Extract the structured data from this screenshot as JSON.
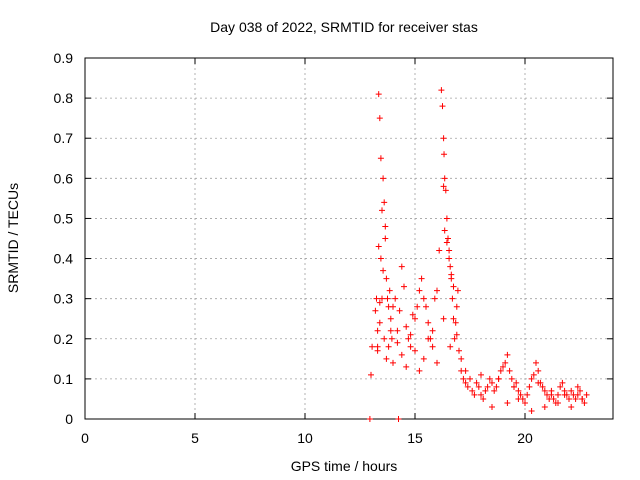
{
  "chart_data": {
    "type": "scatter",
    "title": "Day 038 of 2022, SRMTID for receiver stas",
    "xlabel": "GPS time / hours",
    "ylabel": "SRMTID / TECUs",
    "xlim": [
      0,
      24
    ],
    "ylim": [
      0,
      0.9
    ],
    "xticks": [
      0,
      5,
      10,
      15,
      20
    ],
    "xtick_labels": [
      "0",
      "5",
      "10",
      "15",
      "20"
    ],
    "yticks": [
      0,
      0.1,
      0.2,
      0.3,
      0.4,
      0.5,
      0.6,
      0.7,
      0.8,
      0.9
    ],
    "ytick_labels": [
      "0",
      "0.1",
      "0.2",
      "0.3",
      "0.4",
      "0.5",
      "0.6",
      "0.7",
      "0.8",
      "0.9"
    ],
    "grid": true,
    "marker": "+",
    "color": "#ff0000",
    "series": [
      {
        "name": "stas",
        "x": [
          13.0,
          13.05,
          13.2,
          13.25,
          13.3,
          13.35,
          13.4,
          13.45,
          13.5,
          13.55,
          13.6,
          13.65,
          13.7,
          13.75,
          13.8,
          13.85,
          13.9,
          13.95,
          14.0,
          14.1,
          14.2,
          14.3,
          14.4,
          14.5,
          14.6,
          14.7,
          14.8,
          14.9,
          15.0,
          15.1,
          15.2,
          15.3,
          15.4,
          15.5,
          15.6,
          15.7,
          15.8,
          15.9,
          16.0,
          16.1,
          16.2,
          16.25,
          16.3,
          16.35,
          16.4,
          16.45,
          16.5,
          16.55,
          16.6,
          16.65,
          16.7,
          16.75,
          16.8,
          16.85,
          16.9,
          16.95,
          17.0,
          17.1,
          17.2,
          17.3,
          17.4,
          17.5,
          17.6,
          17.7,
          17.8,
          17.9,
          18.0,
          18.1,
          18.2,
          18.3,
          18.4,
          18.5,
          18.6,
          18.7,
          18.8,
          18.9,
          19.0,
          19.1,
          19.2,
          19.3,
          19.4,
          19.5,
          19.6,
          19.7,
          19.8,
          19.9,
          20.0,
          20.1,
          20.2,
          20.3,
          20.4,
          20.5,
          20.6,
          20.7,
          20.8,
          20.9,
          21.0,
          21.1,
          21.2,
          21.3,
          21.4,
          21.5,
          21.6,
          21.7,
          21.8,
          21.9,
          22.0,
          22.1,
          22.2,
          22.3,
          22.4,
          22.5,
          22.6,
          22.7,
          22.8,
          13.3,
          13.4,
          13.5,
          13.6,
          13.7,
          13.8,
          13.9,
          14.0,
          14.2,
          14.4,
          14.6,
          14.8,
          15.0,
          15.2,
          15.4,
          15.6,
          15.8,
          16.0,
          16.3,
          16.6,
          16.9,
          17.1,
          17.3,
          13.35,
          13.45,
          13.55,
          13.65,
          16.35,
          16.45,
          16.55,
          16.65,
          16.75,
          12.95,
          14.25,
          13.3,
          13.4,
          16.3,
          16.32,
          18.5,
          19.2,
          19.7,
          20.3,
          20.9,
          21.5,
          22.1,
          22.6,
          18.0,
          18.8,
          19.5,
          20.6,
          21.2,
          21.8,
          22.4
        ],
        "y": [
          0.11,
          0.18,
          0.27,
          0.3,
          0.22,
          0.81,
          0.75,
          0.65,
          0.52,
          0.6,
          0.54,
          0.48,
          0.35,
          0.3,
          0.28,
          0.32,
          0.25,
          0.2,
          0.28,
          0.3,
          0.22,
          0.27,
          0.38,
          0.33,
          0.23,
          0.2,
          0.18,
          0.26,
          0.25,
          0.28,
          0.32,
          0.35,
          0.3,
          0.28,
          0.24,
          0.2,
          0.22,
          0.3,
          0.32,
          0.42,
          0.82,
          0.78,
          0.7,
          0.6,
          0.57,
          0.5,
          0.45,
          0.42,
          0.38,
          0.35,
          0.3,
          0.25,
          0.2,
          0.24,
          0.28,
          0.32,
          0.17,
          0.12,
          0.1,
          0.09,
          0.08,
          0.1,
          0.07,
          0.06,
          0.09,
          0.08,
          0.06,
          0.05,
          0.07,
          0.08,
          0.1,
          0.09,
          0.07,
          0.08,
          0.1,
          0.12,
          0.13,
          0.14,
          0.16,
          0.12,
          0.1,
          0.08,
          0.09,
          0.07,
          0.06,
          0.05,
          0.04,
          0.06,
          0.08,
          0.1,
          0.11,
          0.14,
          0.12,
          0.09,
          0.08,
          0.07,
          0.06,
          0.05,
          0.06,
          0.05,
          0.04,
          0.06,
          0.08,
          0.09,
          0.07,
          0.06,
          0.05,
          0.07,
          0.06,
          0.05,
          0.06,
          0.07,
          0.05,
          0.04,
          0.06,
          0.18,
          0.24,
          0.3,
          0.2,
          0.15,
          0.18,
          0.22,
          0.14,
          0.19,
          0.16,
          0.13,
          0.21,
          0.17,
          0.12,
          0.15,
          0.2,
          0.18,
          0.14,
          0.25,
          0.18,
          0.21,
          0.15,
          0.12,
          0.43,
          0.4,
          0.37,
          0.45,
          0.47,
          0.44,
          0.4,
          0.36,
          0.33,
          0.0,
          0.0,
          0.17,
          0.29,
          0.58,
          0.66,
          0.03,
          0.04,
          0.05,
          0.02,
          0.03,
          0.04,
          0.03,
          0.05,
          0.11,
          0.1,
          0.08,
          0.09,
          0.07,
          0.06,
          0.08
        ]
      }
    ]
  }
}
